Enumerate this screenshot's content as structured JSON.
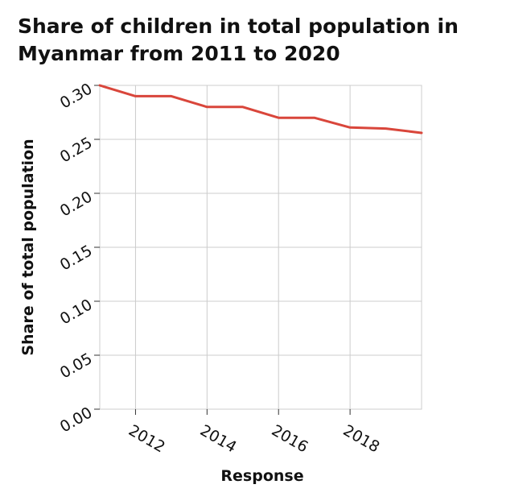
{
  "chart_data": {
    "type": "line",
    "title": "Share of children in total population in Myanmar from 2011 to 2020",
    "xlabel": "Response",
    "ylabel": "Share of total population",
    "xlim": [
      2011,
      2020
    ],
    "ylim": [
      0,
      0.3
    ],
    "x_ticks": [
      2012,
      2014,
      2016,
      2018
    ],
    "x_tick_labels": [
      "2012",
      "2014",
      "2016",
      "2018"
    ],
    "y_ticks": [
      0,
      0.05,
      0.1,
      0.15,
      0.2,
      0.25,
      0.3
    ],
    "y_tick_labels": [
      "0.00",
      "0.05",
      "0.10",
      "0.15",
      "0.20",
      "0.25",
      "0.30"
    ],
    "grid": true,
    "series": [
      {
        "color": "#d9463b",
        "x": [
          2011,
          2012,
          2013,
          2014,
          2015,
          2016,
          2017,
          2018,
          2019,
          2020
        ],
        "values": [
          0.3,
          0.29,
          0.29,
          0.28,
          0.28,
          0.27,
          0.27,
          0.261,
          0.26,
          0.256
        ]
      }
    ]
  }
}
